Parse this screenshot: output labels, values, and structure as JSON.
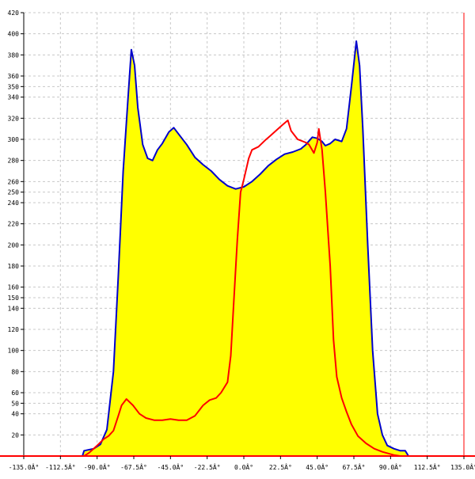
{
  "chart_data": {
    "type": "area",
    "xlim": [
      -135,
      135
    ],
    "ylim": [
      0,
      420
    ],
    "grid": true,
    "x_ticks": [
      {
        "value": -135,
        "label": "-135.0Â°"
      },
      {
        "value": -112.5,
        "label": "-112.5Â°"
      },
      {
        "value": -90,
        "label": "-90.0Â°"
      },
      {
        "value": -67.5,
        "label": "-67.5Â°"
      },
      {
        "value": -45,
        "label": "-45.0Â°"
      },
      {
        "value": -22.5,
        "label": "-22.5Â°"
      },
      {
        "value": 0,
        "label": "0.0Â°"
      },
      {
        "value": 22.5,
        "label": "22.5Â°"
      },
      {
        "value": 45,
        "label": "45.0Â°"
      },
      {
        "value": 67.5,
        "label": "67.5Â°"
      },
      {
        "value": 90,
        "label": "90.0Â°"
      },
      {
        "value": 112.5,
        "label": "112.5Â°"
      },
      {
        "value": 135,
        "label": "135.0Â°"
      }
    ],
    "y_ticks": [
      {
        "value": 20,
        "label": "20"
      },
      {
        "value": 40,
        "label": "40"
      },
      {
        "value": 50,
        "label": "50"
      },
      {
        "value": 60,
        "label": "60"
      },
      {
        "value": 80,
        "label": "80"
      },
      {
        "value": 100,
        "label": "100"
      },
      {
        "value": 120,
        "label": "120"
      },
      {
        "value": 140,
        "label": "140"
      },
      {
        "value": 150,
        "label": "150"
      },
      {
        "value": 160,
        "label": "160"
      },
      {
        "value": 180,
        "label": "180"
      },
      {
        "value": 200,
        "label": "200"
      },
      {
        "value": 220,
        "label": "220"
      },
      {
        "value": 240,
        "label": "240"
      },
      {
        "value": 250,
        "label": "250"
      },
      {
        "value": 260,
        "label": "260"
      },
      {
        "value": 280,
        "label": "280"
      },
      {
        "value": 300,
        "label": "300"
      },
      {
        "value": 320,
        "label": "320"
      },
      {
        "value": 340,
        "label": "340"
      },
      {
        "value": 350,
        "label": "350"
      },
      {
        "value": 360,
        "label": "360"
      },
      {
        "value": 380,
        "label": "380"
      },
      {
        "value": 400,
        "label": "400"
      },
      {
        "value": 420,
        "label": "420"
      }
    ],
    "series": [
      {
        "line_color": "#0000cc",
        "fill_color": "#ffff00",
        "filled": true,
        "points": [
          [
            -99,
            0
          ],
          [
            -98,
            5
          ],
          [
            -92,
            7
          ],
          [
            -88,
            11
          ],
          [
            -84,
            25
          ],
          [
            -80,
            80
          ],
          [
            -77,
            170
          ],
          [
            -74,
            270
          ],
          [
            -71,
            340
          ],
          [
            -69,
            385
          ],
          [
            -67,
            370
          ],
          [
            -65,
            330
          ],
          [
            -62,
            295
          ],
          [
            -59,
            282
          ],
          [
            -56,
            280
          ],
          [
            -53,
            290
          ],
          [
            -50,
            296
          ],
          [
            -46,
            307
          ],
          [
            -43,
            311
          ],
          [
            -40,
            305
          ],
          [
            -35,
            295
          ],
          [
            -30,
            283
          ],
          [
            -25,
            276
          ],
          [
            -20,
            270
          ],
          [
            -15,
            262
          ],
          [
            -10,
            256
          ],
          [
            -5,
            253
          ],
          [
            0,
            255
          ],
          [
            5,
            260
          ],
          [
            10,
            267
          ],
          [
            15,
            275
          ],
          [
            20,
            281
          ],
          [
            25,
            286
          ],
          [
            30,
            288
          ],
          [
            35,
            291
          ],
          [
            38,
            295
          ],
          [
            42,
            302
          ],
          [
            45,
            301
          ],
          [
            48,
            298
          ],
          [
            50,
            294
          ],
          [
            53,
            296
          ],
          [
            56,
            300
          ],
          [
            60,
            298
          ],
          [
            63,
            310
          ],
          [
            66,
            350
          ],
          [
            69,
            393
          ],
          [
            71,
            370
          ],
          [
            73,
            310
          ],
          [
            76,
            200
          ],
          [
            79,
            100
          ],
          [
            82,
            40
          ],
          [
            85,
            20
          ],
          [
            88,
            10
          ],
          [
            92,
            7
          ],
          [
            96,
            5
          ],
          [
            99,
            5
          ],
          [
            101,
            0
          ]
        ]
      },
      {
        "line_color": "#ff0000",
        "fill_color": "none",
        "filled": false,
        "points": [
          [
            -98,
            0
          ],
          [
            -95,
            3
          ],
          [
            -90,
            10
          ],
          [
            -86,
            16
          ],
          [
            -83,
            19
          ],
          [
            -80,
            24
          ],
          [
            -77,
            38
          ],
          [
            -75,
            48
          ],
          [
            -72,
            54
          ],
          [
            -68,
            48
          ],
          [
            -64,
            40
          ],
          [
            -60,
            36
          ],
          [
            -55,
            34
          ],
          [
            -50,
            34
          ],
          [
            -45,
            35
          ],
          [
            -40,
            34
          ],
          [
            -35,
            34
          ],
          [
            -30,
            38
          ],
          [
            -25,
            48
          ],
          [
            -21,
            53
          ],
          [
            -17,
            55
          ],
          [
            -14,
            60
          ],
          [
            -10,
            70
          ],
          [
            -8,
            95
          ],
          [
            -6,
            150
          ],
          [
            -4,
            205
          ],
          [
            -2,
            250
          ],
          [
            0,
            262
          ],
          [
            3,
            282
          ],
          [
            5,
            290
          ],
          [
            9,
            293
          ],
          [
            13,
            299
          ],
          [
            16,
            303
          ],
          [
            21,
            310
          ],
          [
            24,
            314
          ],
          [
            27,
            318
          ],
          [
            29,
            308
          ],
          [
            33,
            300
          ],
          [
            38,
            297
          ],
          [
            40,
            295
          ],
          [
            43,
            287
          ],
          [
            45,
            297
          ],
          [
            46,
            310
          ],
          [
            48,
            290
          ],
          [
            50,
            250
          ],
          [
            53,
            180
          ],
          [
            55,
            110
          ],
          [
            57,
            75
          ],
          [
            60,
            55
          ],
          [
            63,
            42
          ],
          [
            66,
            30
          ],
          [
            70,
            19
          ],
          [
            75,
            12
          ],
          [
            80,
            7
          ],
          [
            85,
            4
          ],
          [
            92,
            1
          ],
          [
            96,
            0
          ]
        ]
      }
    ]
  }
}
